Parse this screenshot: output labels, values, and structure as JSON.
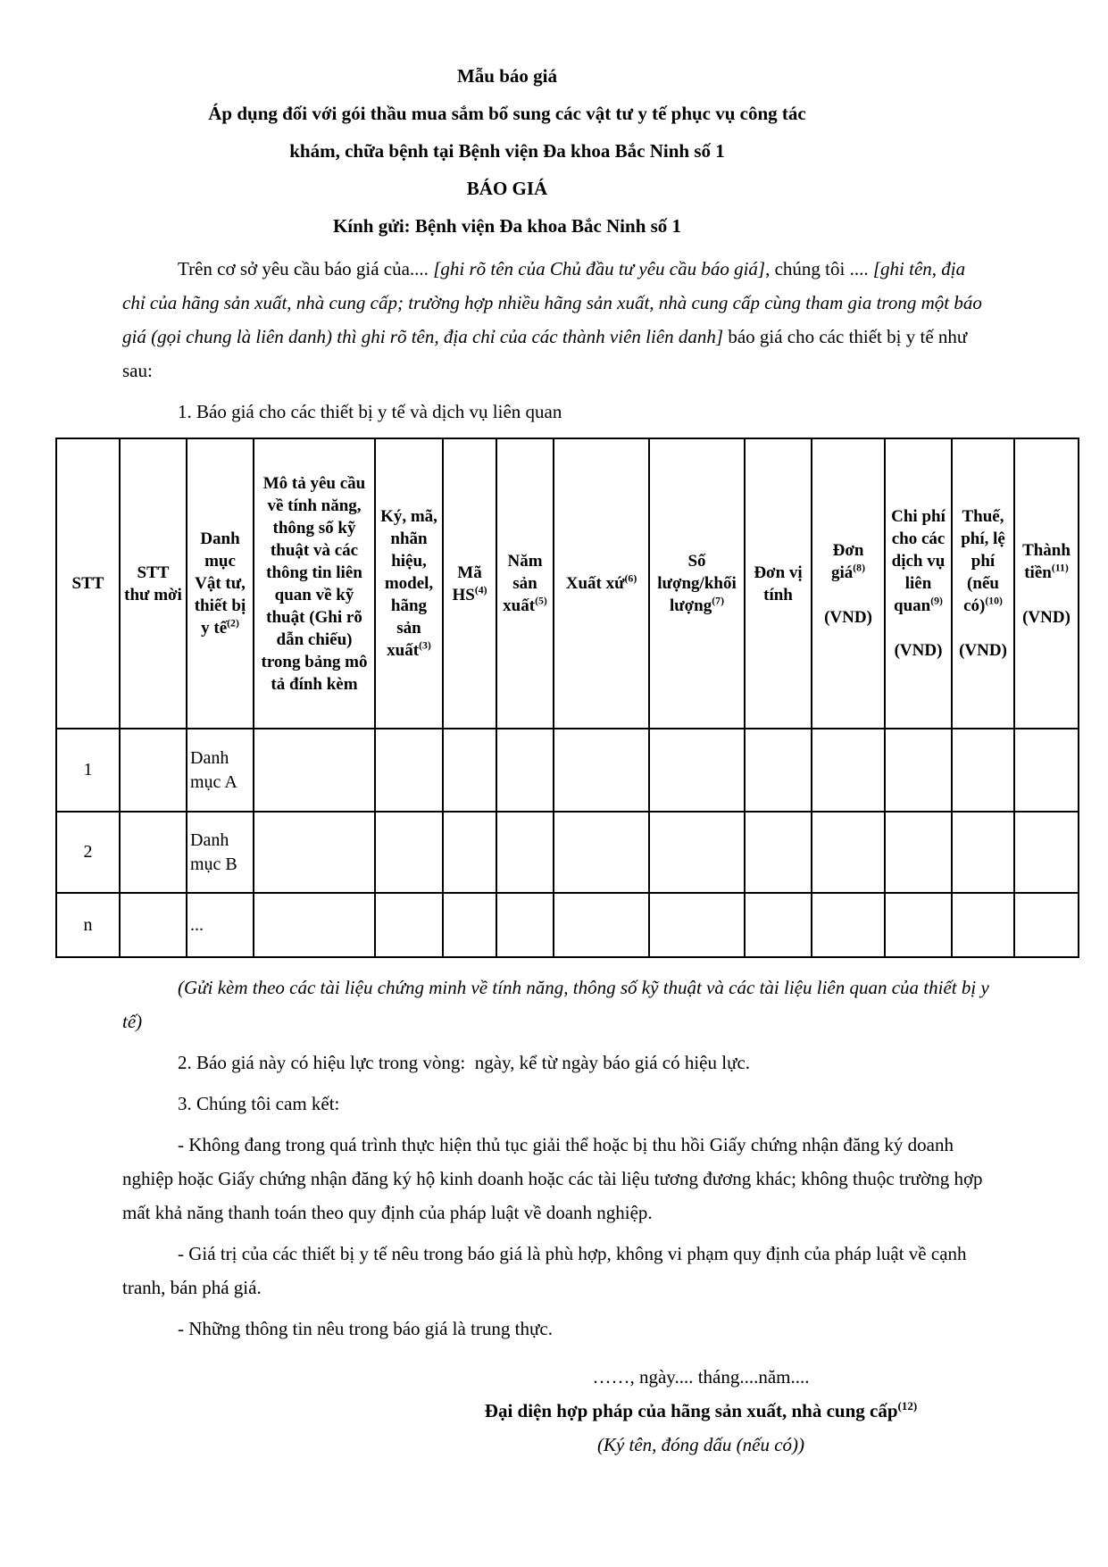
{
  "colors": {
    "page_background": "#ffffff",
    "text": "#000000",
    "table_border": "#000000"
  },
  "header": {
    "form_title": "Mẫu báo giá",
    "scope_line1": "Áp dụng đối với gói thầu mua sắm bổ sung các vật tư y tế phục vụ công tác",
    "scope_line2": "khám, chữa bệnh tại Bệnh viện Đa khoa Bắc Ninh số 1",
    "doc_title": "BÁO GIÁ",
    "salutation": "Kính gửi: Bệnh viện Đa khoa Bắc Ninh số 1"
  },
  "intro_segments": [
    {
      "t": "Trên cơ sở yêu cầu báo giá của.... "
    },
    {
      "i": "[ghi rõ tên của Chủ đầu tư yêu cầu báo giá]"
    },
    {
      "t": ", chúng tôi .... "
    },
    {
      "i": "[ghi tên, địa chỉ của hãng sản xuất, nhà cung cấp; trường hợp nhiều hãng sản xuất, nhà cung cấp cùng tham gia trong một báo giá (gọi chung là liên danh) thì ghi rõ tên, địa chỉ của các thành viên liên danh]"
    },
    {
      "t": " báo giá cho các thiết bị y tế như sau:"
    }
  ],
  "section1_title": "1. Báo giá cho các thiết bị y tế và dịch vụ liên quan",
  "table": {
    "columns": [
      {
        "id": "stt",
        "segments": [
          {
            "t": "STT"
          }
        ]
      },
      {
        "id": "stt-thu-moi",
        "segments": [
          {
            "t": "STT thư mời"
          }
        ]
      },
      {
        "id": "danh-muc",
        "segments": [
          {
            "t": "Danh mục Vật tư, thiết bị y tế"
          },
          {
            "sup": "(2)"
          }
        ]
      },
      {
        "id": "mo-ta",
        "segments": [
          {
            "t": "Mô tả yêu cầu về tính năng, thông số kỹ thuật và các thông tin liên quan về kỹ thuật (Ghi rõ dẫn chiếu) trong bảng mô tả đính kèm"
          }
        ]
      },
      {
        "id": "ky-ma-hieu",
        "segments": [
          {
            "t": "Ký, mã, nhãn hiệu, model, hãng sản xuất"
          },
          {
            "sup": "(3)"
          }
        ]
      },
      {
        "id": "ma-hs",
        "segments": [
          {
            "t": "Mã HS"
          },
          {
            "sup": "(4)"
          }
        ]
      },
      {
        "id": "nam-san-xuat",
        "segments": [
          {
            "t": "Năm sản xuất"
          },
          {
            "sup": "(5)"
          }
        ]
      },
      {
        "id": "xuat-xu",
        "segments": [
          {
            "t": "Xuất xứ"
          },
          {
            "sup": "(6)"
          }
        ]
      },
      {
        "id": "so-luong",
        "segments": [
          {
            "t": "Số lượng/khối lượng"
          },
          {
            "sup": "(7)"
          }
        ]
      },
      {
        "id": "don-vi-tinh",
        "segments": [
          {
            "t": "Đơn vị tính"
          }
        ]
      },
      {
        "id": "don-gia",
        "segments": [
          {
            "t": "Đơn giá"
          },
          {
            "sup": "(8)"
          },
          {
            "br": true
          },
          {
            "br": true
          },
          {
            "t": "(VND)"
          }
        ]
      },
      {
        "id": "chi-phi-dich-vu",
        "segments": [
          {
            "t": "Chi phí cho các dịch vụ liên quan"
          },
          {
            "sup": "(9)"
          },
          {
            "br": true
          },
          {
            "br": true
          },
          {
            "t": "(VND)"
          }
        ]
      },
      {
        "id": "thue-phi",
        "segments": [
          {
            "t": "Thuế, phí, lệ phí (nếu có)"
          },
          {
            "sup": "(10)"
          },
          {
            "br": true
          },
          {
            "br": true
          },
          {
            "t": "(VND)"
          }
        ]
      },
      {
        "id": "thanh-tien",
        "segments": [
          {
            "t": "Thành tiền"
          },
          {
            "sup": "(11)"
          },
          {
            "br": true
          },
          {
            "br": true
          },
          {
            "t": "(VND)"
          }
        ]
      }
    ],
    "rows": [
      {
        "cells": [
          "1",
          "",
          "Danh mục A",
          "",
          "",
          "",
          "",
          "",
          "",
          "",
          "",
          "",
          "",
          ""
        ]
      },
      {
        "cells": [
          "2",
          "",
          "Danh mục B",
          "",
          "",
          "",
          "",
          "",
          "",
          "",
          "",
          "",
          "",
          ""
        ]
      },
      {
        "cells": [
          "n",
          "",
          "...",
          "",
          "",
          "",
          "",
          "",
          "",
          "",
          "",
          "",
          "",
          ""
        ]
      }
    ]
  },
  "attachment_note": "(Gửi kèm theo các tài liệu chứng minh về tính năng, thông số kỹ thuật và các tài liệu liên quan của thiết bị y tế)",
  "clause2": "2. Báo giá này có hiệu lực trong vòng:  ngày, kể từ ngày báo giá có hiệu lực.",
  "clause3": "3. Chúng tôi cam kết:",
  "commitments": [
    "- Không đang trong quá trình thực hiện thủ tục giải thể hoặc bị thu hồi Giấy chứng nhận đăng ký doanh nghiệp hoặc Giấy chứng nhận đăng ký hộ kinh doanh hoặc các tài liệu tương đương khác; không thuộc trường hợp mất khả năng thanh toán theo quy định của pháp luật về doanh nghiệp.",
    "- Giá trị của các thiết bị y tế nêu trong báo giá là phù hợp, không vi phạm quy định của pháp luật về cạnh tranh, bán phá giá.",
    "- Những thông tin nêu trong báo giá là trung thực."
  ],
  "signature": {
    "date_line": "……, ngày.... tháng....năm....",
    "title_segments": [
      {
        "t": "Đại diện hợp pháp của hãng sản xuất, nhà cung cấp"
      },
      {
        "sup": "(12)"
      }
    ],
    "note": "(Ký tên, đóng dấu (nếu có))"
  }
}
